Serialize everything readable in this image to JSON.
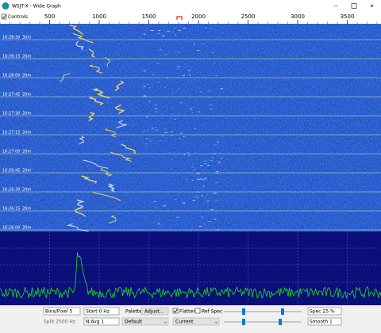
{
  "window": {
    "title": "WSJT-X - Wide Graph"
  },
  "controls_toggle": "Controls",
  "frequency_axis": {
    "ticks": [
      500,
      1000,
      1500,
      2000,
      2500,
      3000,
      3500
    ]
  },
  "waterfall": {
    "rows": [
      {
        "time": "16:28:30",
        "band": "30m"
      },
      {
        "time": "16:28:15",
        "band": "20m"
      },
      {
        "time": "16:28:00",
        "band": "20m"
      },
      {
        "time": "16:27:45",
        "band": "20m"
      },
      {
        "time": "16:27:30",
        "band": "20m"
      },
      {
        "time": "16:27:15",
        "band": "20m"
      },
      {
        "time": "16:27:00",
        "band": "20m"
      },
      {
        "time": "16:26:45",
        "band": "20m"
      },
      {
        "time": "16:26:30",
        "band": "20m"
      },
      {
        "time": "16:26:15",
        "band": "20m"
      },
      {
        "time": "16:26:00",
        "band": "20m"
      }
    ]
  },
  "controls": {
    "bins_per_pixel": "Bins/Pixel  5",
    "start": "Start 0 Hz",
    "palette": "Palette",
    "adjust": "Adjust...",
    "flatten": "Flatten",
    "ref_spec": "Ref Spec",
    "spec": "Spec 25 %",
    "split": "Split  2500  Hz",
    "n_avg": "N Avg 1",
    "palette_choice": "Default",
    "spectrum_choice": "Current",
    "smooth": "Smooth  1"
  }
}
